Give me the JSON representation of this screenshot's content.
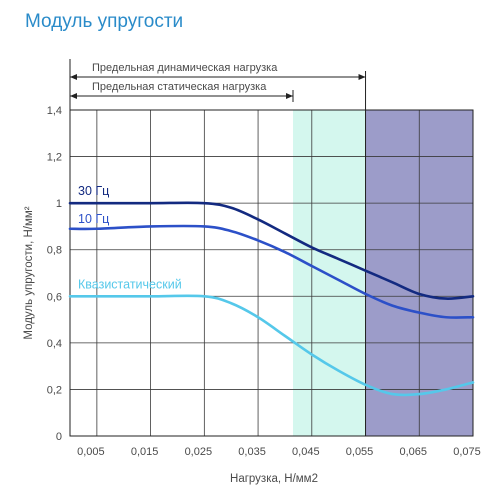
{
  "chart_data": {
    "type": "line",
    "title": "Модуль упругости",
    "xlabel": "Нагрузка, Н/мм2",
    "ylabel": "Модуль упругости, Н/мм²",
    "xlim": [
      0,
      0.075
    ],
    "ylim": [
      0,
      1.4
    ],
    "x_ticks": [
      0.005,
      0.015,
      0.025,
      0.035,
      0.045,
      0.055,
      0.065,
      0.075
    ],
    "x_tick_labels": [
      "0,005",
      "0,015",
      "0,025",
      "0,035",
      "0,045",
      "0,055",
      "0,065",
      "0,075"
    ],
    "y_ticks": [
      0,
      0.2,
      0.4,
      0.6,
      0.8,
      1,
      1.2,
      1.4
    ],
    "y_tick_labels": [
      "0",
      "0,2",
      "0,4",
      "0,6",
      "0,8",
      "1",
      "1,2",
      "1,4"
    ],
    "grid": true,
    "ranges": [
      {
        "label": "Предельная динамическая нагрузка",
        "x": [
          0,
          0.055
        ]
      },
      {
        "label": "Предельная статическая нагрузка",
        "x": [
          0,
          0.0415
        ]
      }
    ],
    "regions": [
      {
        "x": [
          0.0415,
          0.055
        ],
        "color": "#d4f7ee"
      },
      {
        "x": [
          0.055,
          0.075
        ],
        "color": "#9c9cc9"
      }
    ],
    "series": [
      {
        "name": "30 Гц",
        "color": "#132a80",
        "x": [
          0,
          0.005,
          0.015,
          0.025,
          0.03,
          0.035,
          0.04,
          0.045,
          0.05,
          0.055,
          0.06,
          0.065,
          0.07,
          0.075
        ],
        "y": [
          1.0,
          1.0,
          1.0,
          1.0,
          0.98,
          0.93,
          0.87,
          0.81,
          0.76,
          0.71,
          0.66,
          0.61,
          0.59,
          0.6
        ]
      },
      {
        "name": "10 Гц",
        "color": "#2c50c8",
        "x": [
          0,
          0.005,
          0.015,
          0.025,
          0.03,
          0.035,
          0.04,
          0.045,
          0.05,
          0.055,
          0.06,
          0.065,
          0.07,
          0.075
        ],
        "y": [
          0.89,
          0.89,
          0.9,
          0.9,
          0.88,
          0.84,
          0.79,
          0.73,
          0.67,
          0.61,
          0.56,
          0.53,
          0.51,
          0.51
        ]
      },
      {
        "name": "Квазистатический",
        "color": "#55c8ea",
        "x": [
          0,
          0.005,
          0.015,
          0.025,
          0.03,
          0.035,
          0.04,
          0.045,
          0.05,
          0.055,
          0.06,
          0.065,
          0.07,
          0.075
        ],
        "y": [
          0.6,
          0.6,
          0.6,
          0.6,
          0.57,
          0.51,
          0.43,
          0.35,
          0.28,
          0.22,
          0.18,
          0.18,
          0.2,
          0.23
        ]
      }
    ]
  }
}
